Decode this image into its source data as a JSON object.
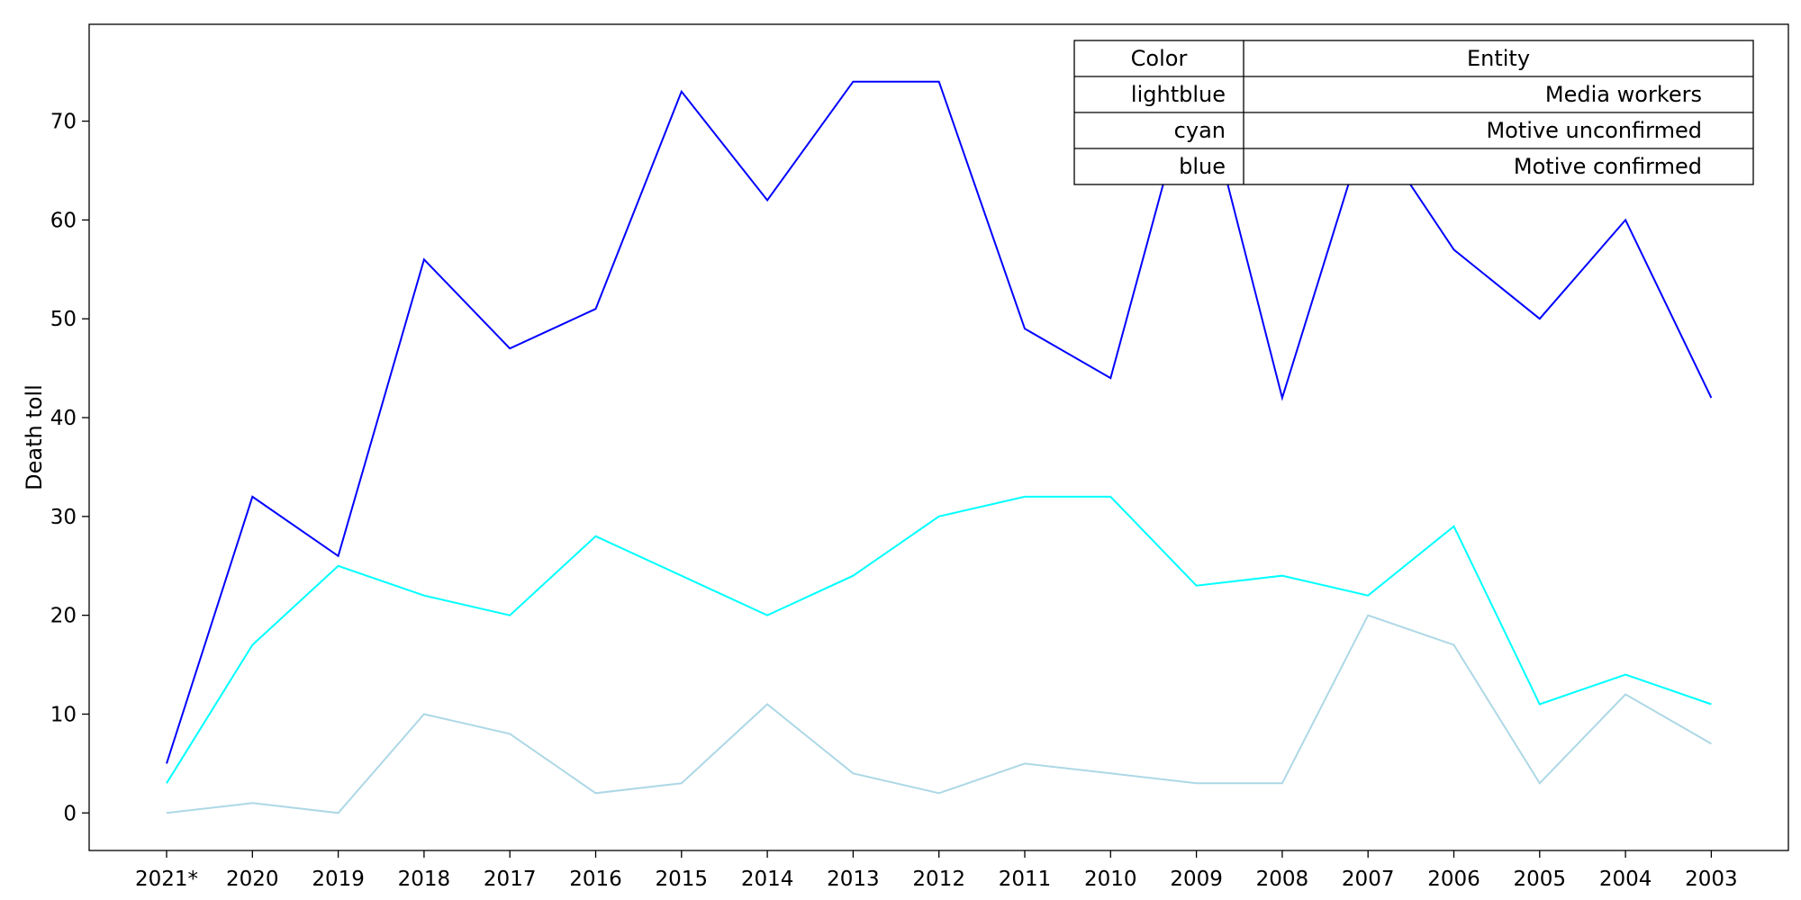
{
  "chart_data": {
    "type": "line",
    "title": "",
    "xlabel": "",
    "ylabel": "Death toll",
    "categories": [
      "2021*",
      "2020",
      "2019",
      "2018",
      "2017",
      "2016",
      "2015",
      "2014",
      "2013",
      "2012",
      "2011",
      "2010",
      "2009",
      "2008",
      "2007",
      "2006",
      "2005",
      "2004",
      "2003"
    ],
    "ylim": [
      -3.8,
      79.8
    ],
    "yticks": [
      0,
      10,
      20,
      30,
      40,
      50,
      60,
      70
    ],
    "grid": false,
    "legend_placement": "top-right",
    "series": [
      {
        "name": "Media workers",
        "color": "#add8e6",
        "color_label": "lightblue",
        "values": [
          0,
          1,
          0,
          10,
          8,
          2,
          3,
          11,
          4,
          2,
          5,
          4,
          3,
          3,
          20,
          17,
          3,
          12,
          7
        ]
      },
      {
        "name": "Motive unconfirmed",
        "color": "#00ffff",
        "color_label": "cyan",
        "values": [
          3,
          17,
          25,
          22,
          20,
          28,
          24,
          20,
          24,
          30,
          32,
          32,
          23,
          24,
          22,
          29,
          11,
          14,
          11
        ]
      },
      {
        "name": "Motive confirmed",
        "color": "#0000ff",
        "color_label": "blue",
        "values": [
          5,
          32,
          26,
          56,
          47,
          51,
          73,
          62,
          74,
          74,
          49,
          44,
          76,
          42,
          70,
          57,
          50,
          60,
          42
        ]
      }
    ],
    "legend_table": {
      "headers": [
        "Color",
        "Entity"
      ],
      "rows": [
        [
          "lightblue",
          "Media workers"
        ],
        [
          "cyan",
          "Motive unconfirmed"
        ],
        [
          "blue",
          "Motive confirmed"
        ]
      ]
    }
  }
}
